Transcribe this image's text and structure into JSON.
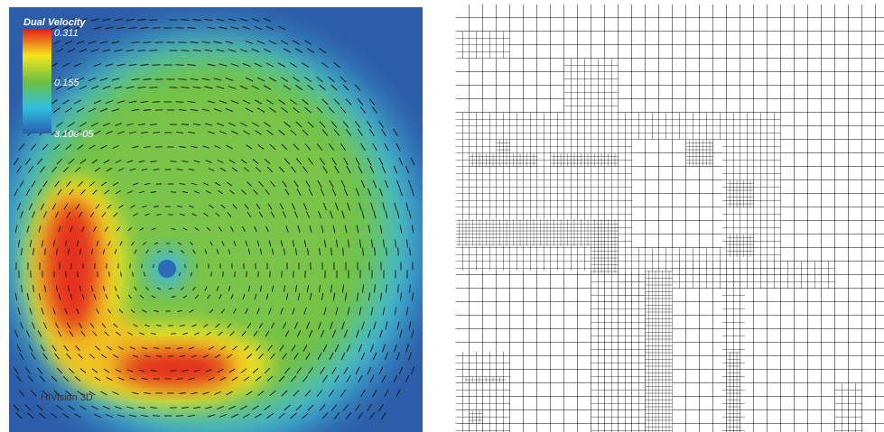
{
  "legend": {
    "title": "Dual Velocity",
    "ticks": [
      "0.311",
      "0.155",
      "3.10e-05"
    ]
  },
  "watermark": "HIVision 3D"
}
